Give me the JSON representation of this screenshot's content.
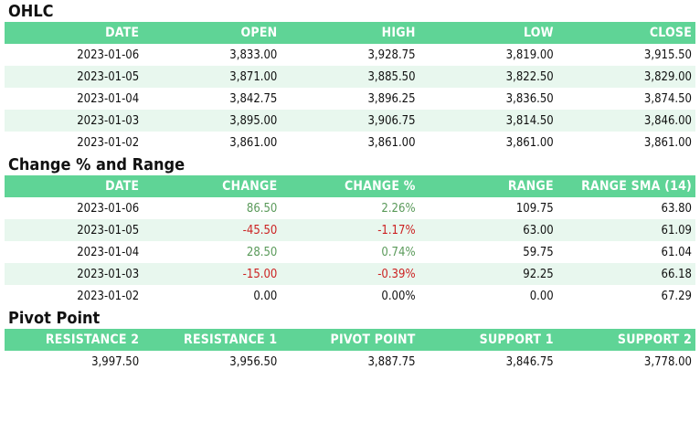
{
  "ohlc": {
    "title": "OHLC",
    "columns": [
      "DATE",
      "OPEN",
      "HIGH",
      "LOW",
      "CLOSE"
    ],
    "rows": [
      [
        "2023-01-06",
        "3,833.00",
        "3,928.75",
        "3,819.00",
        "3,915.50"
      ],
      [
        "2023-01-05",
        "3,871.00",
        "3,885.50",
        "3,822.50",
        "3,829.00"
      ],
      [
        "2023-01-04",
        "3,842.75",
        "3,896.25",
        "3,836.50",
        "3,874.50"
      ],
      [
        "2023-01-03",
        "3,895.00",
        "3,906.75",
        "3,814.50",
        "3,846.00"
      ],
      [
        "2023-01-02",
        "3,861.00",
        "3,861.00",
        "3,861.00",
        "3,861.00"
      ]
    ]
  },
  "change": {
    "title": "Change % and Range",
    "columns": [
      "DATE",
      "CHANGE",
      "CHANGE %",
      "RANGE",
      "RANGE SMA (14)"
    ],
    "rows": [
      [
        "2023-01-06",
        "86.50",
        "2.26%",
        "109.75",
        "63.80"
      ],
      [
        "2023-01-05",
        "-45.50",
        "-1.17%",
        "63.00",
        "61.09"
      ],
      [
        "2023-01-04",
        "28.50",
        "0.74%",
        "59.75",
        "61.04"
      ],
      [
        "2023-01-03",
        "-15.00",
        "-0.39%",
        "92.25",
        "66.18"
      ],
      [
        "2023-01-02",
        "0.00",
        "0.00%",
        "0.00",
        "67.29"
      ]
    ]
  },
  "pivot": {
    "title": "Pivot Point",
    "columns": [
      "RESISTANCE 2",
      "RESISTANCE 1",
      "PIVOT POINT",
      "SUPPORT 1",
      "SUPPORT 2"
    ],
    "rows": [
      [
        "3,997.50",
        "3,956.50",
        "3,887.75",
        "3,846.75",
        "3,778.00"
      ]
    ]
  },
  "colors": {
    "header_bg": "#5fd496",
    "header_text": "#ffffff",
    "stripe": "#e8f7ee",
    "positive": "#5a9a5a",
    "negative": "#cc2222"
  }
}
